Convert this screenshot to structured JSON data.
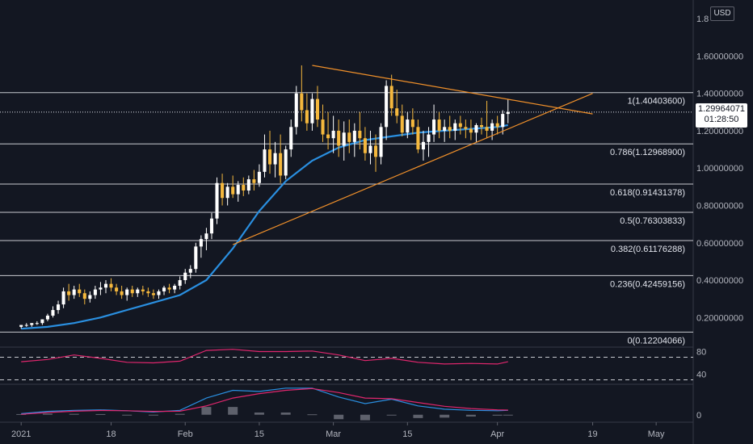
{
  "currency": "USD",
  "last_price": "1.29964071",
  "countdown": "01:28:50",
  "colors": {
    "background": "#131722",
    "up_candle": "#ffffff",
    "down_candle": "#f5b83d",
    "ma_line": "#2a8fe0",
    "trendline": "#f0902a",
    "rsi_line": "#e0266d",
    "macd_line": "#2a8fe0",
    "signal_line": "#e0266d",
    "histogram": "#787b86",
    "fib_line": "#c8cad0"
  },
  "chart_data": [
    {
      "type": "candlestick",
      "y_scale": "linear",
      "ylim": [
        0.05,
        1.9
      ],
      "y_ticks": [
        0.2,
        0.4,
        0.6,
        0.8,
        1.0,
        1.2,
        1.4,
        1.6,
        1.8
      ],
      "y_tick_labels": [
        "0.20000000",
        "0.40000000",
        "0.60000000",
        "0.80000000",
        "1.00000000",
        "1.20000000",
        "1.40000000",
        "1.60000000",
        "1.8"
      ],
      "x_ticks": [
        {
          "label": "2021",
          "day": 0
        },
        {
          "label": "18",
          "day": 17
        },
        {
          "label": "Feb",
          "day": 31
        },
        {
          "label": "15",
          "day": 45
        },
        {
          "label": "Mar",
          "day": 59
        },
        {
          "label": "15",
          "day": 73
        },
        {
          "label": "Apr",
          "day": 90
        },
        {
          "label": "19",
          "day": 108
        },
        {
          "label": "May",
          "day": 120
        }
      ],
      "x_range_days": [
        -4,
        127
      ],
      "candles": [
        [
          0.15,
          0.16,
          0.14,
          0.16
        ],
        [
          0.16,
          0.17,
          0.15,
          0.16
        ],
        [
          0.16,
          0.17,
          0.15,
          0.17
        ],
        [
          0.17,
          0.18,
          0.16,
          0.17
        ],
        [
          0.17,
          0.19,
          0.16,
          0.19
        ],
        [
          0.19,
          0.22,
          0.18,
          0.21
        ],
        [
          0.21,
          0.26,
          0.2,
          0.24
        ],
        [
          0.24,
          0.29,
          0.22,
          0.27
        ],
        [
          0.27,
          0.36,
          0.25,
          0.34
        ],
        [
          0.34,
          0.38,
          0.29,
          0.32
        ],
        [
          0.32,
          0.37,
          0.3,
          0.35
        ],
        [
          0.35,
          0.38,
          0.31,
          0.33
        ],
        [
          0.33,
          0.35,
          0.27,
          0.3
        ],
        [
          0.3,
          0.34,
          0.28,
          0.32
        ],
        [
          0.32,
          0.37,
          0.3,
          0.35
        ],
        [
          0.35,
          0.39,
          0.32,
          0.36
        ],
        [
          0.36,
          0.4,
          0.33,
          0.38
        ],
        [
          0.38,
          0.41,
          0.34,
          0.36
        ],
        [
          0.36,
          0.38,
          0.32,
          0.34
        ],
        [
          0.34,
          0.37,
          0.3,
          0.32
        ],
        [
          0.32,
          0.36,
          0.29,
          0.35
        ],
        [
          0.35,
          0.37,
          0.31,
          0.33
        ],
        [
          0.33,
          0.36,
          0.31,
          0.35
        ],
        [
          0.35,
          0.37,
          0.32,
          0.34
        ],
        [
          0.34,
          0.36,
          0.31,
          0.33
        ],
        [
          0.33,
          0.35,
          0.3,
          0.32
        ],
        [
          0.32,
          0.35,
          0.3,
          0.34
        ],
        [
          0.34,
          0.37,
          0.32,
          0.36
        ],
        [
          0.36,
          0.38,
          0.33,
          0.35
        ],
        [
          0.35,
          0.38,
          0.33,
          0.37
        ],
        [
          0.37,
          0.42,
          0.35,
          0.4
        ],
        [
          0.4,
          0.46,
          0.38,
          0.44
        ],
        [
          0.44,
          0.48,
          0.41,
          0.46
        ],
        [
          0.46,
          0.6,
          0.44,
          0.58
        ],
        [
          0.58,
          0.64,
          0.52,
          0.62
        ],
        [
          0.62,
          0.68,
          0.56,
          0.65
        ],
        [
          0.65,
          0.76,
          0.62,
          0.73
        ],
        [
          0.73,
          0.95,
          0.7,
          0.92
        ],
        [
          0.92,
          0.97,
          0.8,
          0.84
        ],
        [
          0.84,
          0.92,
          0.8,
          0.9
        ],
        [
          0.9,
          0.96,
          0.84,
          0.86
        ],
        [
          0.86,
          0.93,
          0.82,
          0.91
        ],
        [
          0.91,
          0.95,
          0.85,
          0.88
        ],
        [
          0.88,
          0.96,
          0.86,
          0.94
        ],
        [
          0.94,
          0.99,
          0.88,
          0.92
        ],
        [
          0.92,
          1.02,
          0.9,
          0.98
        ],
        [
          0.98,
          1.18,
          0.95,
          1.1
        ],
        [
          1.1,
          1.2,
          0.97,
          1.02
        ],
        [
          1.02,
          1.14,
          0.95,
          1.08
        ],
        [
          1.08,
          1.18,
          0.92,
          0.96
        ],
        [
          0.96,
          1.12,
          0.94,
          1.1
        ],
        [
          1.1,
          1.26,
          1.06,
          1.22
        ],
        [
          1.22,
          1.44,
          1.18,
          1.4
        ],
        [
          1.4,
          1.55,
          1.25,
          1.31
        ],
        [
          1.31,
          1.4,
          1.2,
          1.24
        ],
        [
          1.24,
          1.4,
          1.2,
          1.37
        ],
        [
          1.37,
          1.44,
          1.22,
          1.26
        ],
        [
          1.26,
          1.34,
          1.14,
          1.18
        ],
        [
          1.18,
          1.3,
          1.1,
          1.16
        ],
        [
          1.16,
          1.28,
          1.08,
          1.2
        ],
        [
          1.2,
          1.26,
          1.06,
          1.12
        ],
        [
          1.12,
          1.25,
          1.04,
          1.19
        ],
        [
          1.19,
          1.26,
          1.08,
          1.14
        ],
        [
          1.14,
          1.24,
          1.06,
          1.2
        ],
        [
          1.2,
          1.3,
          1.1,
          1.16
        ],
        [
          1.16,
          1.22,
          1.04,
          1.08
        ],
        [
          1.08,
          1.2,
          1.02,
          1.12
        ],
        [
          1.12,
          1.18,
          0.98,
          1.06
        ],
        [
          1.06,
          1.24,
          1.02,
          1.22
        ],
        [
          1.22,
          1.47,
          1.15,
          1.44
        ],
        [
          1.44,
          1.5,
          1.28,
          1.32
        ],
        [
          1.32,
          1.42,
          1.24,
          1.28
        ],
        [
          1.28,
          1.34,
          1.17,
          1.19
        ],
        [
          1.19,
          1.3,
          1.16,
          1.26
        ],
        [
          1.26,
          1.32,
          1.18,
          1.22
        ],
        [
          1.22,
          1.26,
          1.08,
          1.1
        ],
        [
          1.1,
          1.2,
          1.04,
          1.14
        ],
        [
          1.14,
          1.22,
          1.06,
          1.18
        ],
        [
          1.18,
          1.34,
          1.14,
          1.26
        ],
        [
          1.26,
          1.3,
          1.16,
          1.2
        ],
        [
          1.2,
          1.26,
          1.14,
          1.22
        ],
        [
          1.22,
          1.28,
          1.16,
          1.2
        ],
        [
          1.2,
          1.26,
          1.15,
          1.24
        ],
        [
          1.24,
          1.28,
          1.18,
          1.22
        ],
        [
          1.22,
          1.26,
          1.16,
          1.21
        ],
        [
          1.21,
          1.26,
          1.15,
          1.19
        ],
        [
          1.19,
          1.24,
          1.14,
          1.23
        ],
        [
          1.23,
          1.27,
          1.18,
          1.22
        ],
        [
          1.22,
          1.36,
          1.16,
          1.2
        ],
        [
          1.2,
          1.26,
          1.15,
          1.24
        ],
        [
          1.24,
          1.28,
          1.18,
          1.22
        ],
        [
          1.22,
          1.31,
          1.18,
          1.29
        ],
        [
          1.29,
          1.37,
          1.24,
          1.3
        ]
      ],
      "ma_line": {
        "days": [
          0,
          5,
          10,
          15,
          20,
          25,
          30,
          35,
          40,
          45,
          50,
          55,
          60,
          65,
          70,
          75,
          80,
          85,
          90,
          92
        ],
        "values": [
          0.14,
          0.15,
          0.17,
          0.2,
          0.24,
          0.28,
          0.32,
          0.4,
          0.57,
          0.77,
          0.93,
          1.04,
          1.11,
          1.15,
          1.17,
          1.19,
          1.2,
          1.21,
          1.22,
          1.23
        ]
      },
      "trendlines": [
        {
          "from": [
            55,
            1.55
          ],
          "to": [
            108,
            1.29
          ]
        },
        {
          "from": [
            40,
            0.59
          ],
          "to": [
            108,
            1.4
          ]
        }
      ],
      "fib_levels": [
        {
          "ratio": "1",
          "price": 1.404036,
          "label": "1(1.40403600)"
        },
        {
          "ratio": "0.786",
          "price": 1.129689,
          "label": "0.786(1.12968900)"
        },
        {
          "ratio": "0.618",
          "price": 0.91431378,
          "label": "0.618(0.91431378)"
        },
        {
          "ratio": "0.5",
          "price": 0.76303833,
          "label": "0.5(0.76303833)"
        },
        {
          "ratio": "0.382",
          "price": 0.61176288,
          "label": "0.382(0.61176288)"
        },
        {
          "ratio": "0.236",
          "price": 0.42459156,
          "label": "0.236(0.42459156)"
        },
        {
          "ratio": "0",
          "price": 0.12204066,
          "label": "0(0.12204066)"
        }
      ]
    },
    {
      "type": "line",
      "panel": "rsi",
      "ylim": [
        25,
        85
      ],
      "y_tick_labels": [
        "80",
        "40"
      ],
      "y_ticks": [
        80,
        40
      ],
      "reference_lines": [
        70,
        30
      ],
      "x": [
        0,
        5,
        10,
        15,
        20,
        25,
        30,
        35,
        40,
        45,
        50,
        55,
        60,
        65,
        70,
        75,
        80,
        85,
        90,
        92
      ],
      "values": [
        62,
        66,
        74,
        68,
        61,
        60,
        63,
        82,
        84,
        80,
        80,
        81,
        74,
        64,
        68,
        61,
        58,
        59,
        58,
        62
      ]
    },
    {
      "type": "line",
      "panel": "macd",
      "ylim": [
        -0.03,
        0.13
      ],
      "y_ticks": [
        0
      ],
      "y_tick_labels": [
        "0"
      ],
      "x": [
        0,
        5,
        10,
        15,
        20,
        25,
        30,
        35,
        40,
        45,
        50,
        55,
        60,
        65,
        70,
        75,
        80,
        85,
        90,
        92
      ],
      "series": [
        {
          "values": [
            0.005,
            0.015,
            0.02,
            0.022,
            0.018,
            0.012,
            0.02,
            0.075,
            0.11,
            0.105,
            0.12,
            0.12,
            0.08,
            0.05,
            0.07,
            0.04,
            0.025,
            0.02,
            0.018,
            0.02
          ]
        },
        {
          "values": [
            0.002,
            0.01,
            0.016,
            0.019,
            0.018,
            0.015,
            0.016,
            0.04,
            0.075,
            0.095,
            0.11,
            0.118,
            0.1,
            0.075,
            0.072,
            0.055,
            0.038,
            0.028,
            0.022,
            0.021
          ]
        }
      ],
      "histogram": [
        0.003,
        0.005,
        0.004,
        0.003,
        0.0,
        -0.003,
        0.004,
        0.035,
        0.035,
        0.01,
        0.01,
        0.002,
        -0.02,
        -0.025,
        -0.002,
        -0.015,
        -0.013,
        -0.008,
        -0.004,
        -0.001
      ]
    }
  ]
}
